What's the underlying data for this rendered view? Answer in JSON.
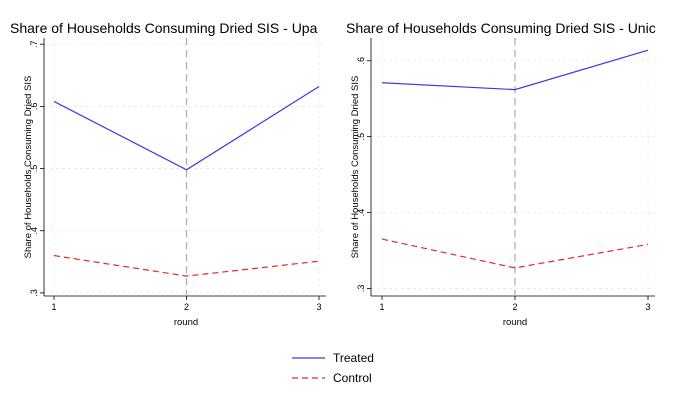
{
  "chart_data": [
    {
      "type": "line",
      "title": "Share of Households Consuming Dried SIS - Upa",
      "xlabel": "round",
      "ylabel": "Share of Households Consuming Dried SIS",
      "x": [
        1,
        2,
        3
      ],
      "xticks": [
        "1",
        "2",
        "3"
      ],
      "yticks": [
        ".3",
        ".4",
        ".5",
        ".6",
        ".7"
      ],
      "ylim": [
        0.295,
        0.71
      ],
      "vline_x": 2,
      "grid": true,
      "series": [
        {
          "name": "Treated",
          "values": [
            0.608,
            0.498,
            0.632
          ],
          "color": "#3b3bdc",
          "dash": "solid"
        },
        {
          "name": "Control",
          "values": [
            0.36,
            0.327,
            0.351
          ],
          "color": "#e8262a",
          "dash": "dashed"
        }
      ]
    },
    {
      "type": "line",
      "title": "Share of Households Consuming Dried SIS - Unic",
      "xlabel": "round",
      "ylabel": "Share of Households Consuming Dried SIS",
      "x": [
        1,
        2,
        3
      ],
      "xticks": [
        "1",
        "2",
        "3"
      ],
      "yticks": [
        ".3",
        ".4",
        ".5",
        ".6"
      ],
      "ylim": [
        0.29,
        0.63
      ],
      "vline_x": 2,
      "grid": true,
      "series": [
        {
          "name": "Treated",
          "values": [
            0.571,
            0.562,
            0.614
          ],
          "color": "#3b3bdc",
          "dash": "solid"
        },
        {
          "name": "Control",
          "values": [
            0.365,
            0.327,
            0.358
          ],
          "color": "#e8262a",
          "dash": "dashed"
        }
      ]
    }
  ],
  "legend": {
    "position": "bottom-center",
    "items": [
      {
        "label": "Treated",
        "color": "#3b3bdc",
        "dash": "solid"
      },
      {
        "label": "Control",
        "color": "#e8262a",
        "dash": "dashed"
      }
    ]
  }
}
